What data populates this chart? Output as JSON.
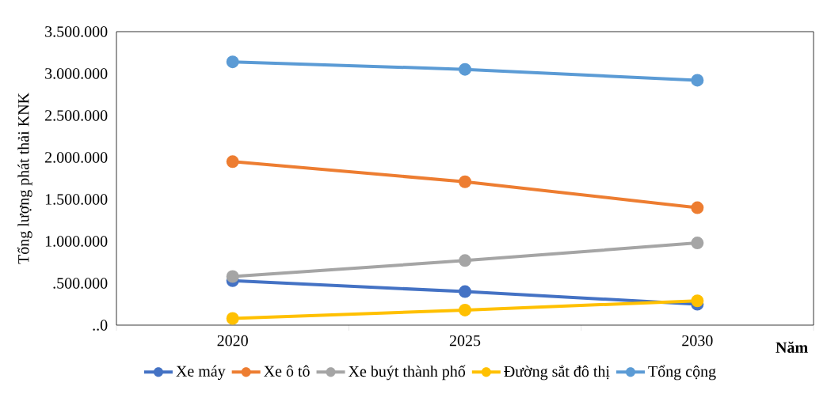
{
  "chart_data": {
    "type": "line",
    "ylabel": "Tổng lượng phát thải KNK",
    "xlabel": "**Năm**",
    "categories": [
      "2020",
      "2025",
      "2030"
    ],
    "series": [
      {
        "name": "Xe máy",
        "color": "#4472c4",
        "values": [
          530000,
          400000,
          250000
        ]
      },
      {
        "name": "Xe ô tô",
        "color": "#ed7d31",
        "values": [
          1950000,
          1710000,
          1400000
        ]
      },
      {
        "name": "Xe buýt thành phố",
        "color": "#a5a5a5",
        "values": [
          580000,
          770000,
          980000
        ]
      },
      {
        "name": "Đường sắt đô thị",
        "color": "#ffc000",
        "values": [
          80000,
          180000,
          290000
        ]
      },
      {
        "name": "Tổng cộng",
        "color": "#5b9bd5",
        "values": [
          3140000,
          3050000,
          2920000
        ]
      }
    ],
    "ylim": [
      0,
      3500000
    ],
    "yticks": [
      {
        "value": 0,
        "label": "..0"
      },
      {
        "value": 500000,
        "label": ".500.000"
      },
      {
        "value": 1000000,
        "label": "1.000.000"
      },
      {
        "value": 1500000,
        "label": "1.500.000"
      },
      {
        "value": 2000000,
        "label": "2.000.000"
      },
      {
        "value": 2500000,
        "label": "2.500.000"
      },
      {
        "value": 3000000,
        "label": "3.000.000"
      },
      {
        "value": 3500000,
        "label": "3.500.000"
      }
    ],
    "grid": false,
    "legend": "bottom",
    "marker": "circle",
    "line_style": "solid"
  }
}
